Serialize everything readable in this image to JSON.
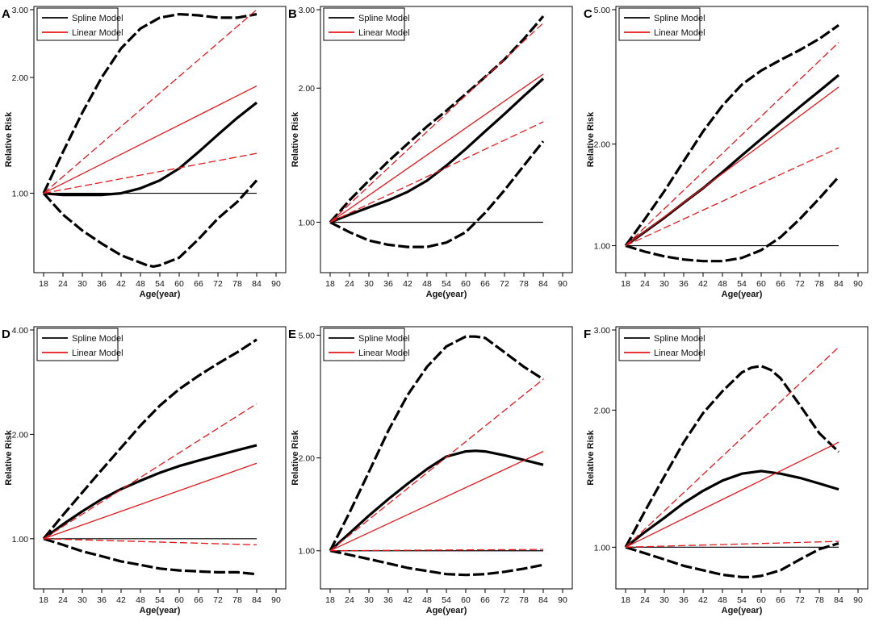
{
  "figure_title": "",
  "colors": {
    "spline": "#000000",
    "linear": "#e4181b",
    "reference": "#000000",
    "axis": "#000000"
  },
  "legend_labels": {
    "spline": "Spline Model",
    "linear": "Linear Model"
  },
  "chart_data": [
    {
      "panel": "A",
      "type": "line",
      "xlabel": "Age(year)",
      "ylabel": "Relative Risk",
      "xlim": [
        18,
        90
      ],
      "x_ticks": [
        18,
        24,
        30,
        36,
        42,
        48,
        54,
        60,
        66,
        72,
        78,
        84,
        90
      ],
      "ylim_log": [
        0.64,
        3.0
      ],
      "y_ticks": [
        1.0,
        2.0,
        3.0
      ],
      "y_tick_labels": [
        "1.00",
        "2.00",
        "3.00"
      ],
      "series": [
        {
          "name": "Spline Model",
          "x": [
            18,
            24,
            30,
            36,
            42,
            48,
            54,
            60,
            66,
            72,
            78,
            84
          ],
          "y": [
            1.0,
            0.99,
            0.99,
            0.99,
            1.0,
            1.03,
            1.08,
            1.16,
            1.28,
            1.42,
            1.57,
            1.72
          ]
        },
        {
          "name": "Spline Model upper CI",
          "x": [
            18,
            24,
            30,
            36,
            42,
            48,
            54,
            60,
            66,
            72,
            78,
            84
          ],
          "y": [
            1.0,
            1.28,
            1.62,
            2.0,
            2.38,
            2.68,
            2.86,
            2.92,
            2.9,
            2.86,
            2.86,
            2.92
          ]
        },
        {
          "name": "Spline Model lower CI",
          "x": [
            18,
            24,
            30,
            36,
            42,
            48,
            50,
            52,
            54,
            60,
            66,
            72,
            78,
            84
          ],
          "y": [
            1.0,
            0.88,
            0.8,
            0.74,
            0.69,
            0.66,
            0.65,
            0.645,
            0.65,
            0.68,
            0.76,
            0.86,
            0.95,
            1.08
          ]
        },
        {
          "name": "Linear Model",
          "x": [
            18,
            84
          ],
          "y": [
            1.0,
            1.9
          ]
        },
        {
          "name": "Linear Model upper CI",
          "x": [
            18,
            84
          ],
          "y": [
            1.0,
            3.0
          ]
        },
        {
          "name": "Linear Model lower CI",
          "x": [
            18,
            84
          ],
          "y": [
            1.0,
            1.27
          ]
        }
      ]
    },
    {
      "panel": "B",
      "type": "line",
      "xlabel": "Age(year)",
      "ylabel": "Relative Risk",
      "xlim": [
        18,
        90
      ],
      "x_ticks": [
        18,
        24,
        30,
        36,
        42,
        48,
        54,
        60,
        66,
        72,
        78,
        84,
        90
      ],
      "ylim_log": [
        0.79,
        3.0
      ],
      "y_ticks": [
        1.0,
        2.0,
        3.0
      ],
      "y_tick_labels": [
        "1.00",
        "2.00",
        "3.00"
      ],
      "series": [
        {
          "name": "Spline Model",
          "x": [
            18,
            24,
            30,
            36,
            42,
            48,
            54,
            60,
            66,
            72,
            78,
            84
          ],
          "y": [
            1.0,
            1.04,
            1.08,
            1.12,
            1.17,
            1.24,
            1.34,
            1.46,
            1.6,
            1.75,
            1.92,
            2.1
          ]
        },
        {
          "name": "Spline Model upper CI",
          "x": [
            18,
            24,
            30,
            36,
            42,
            48,
            54,
            60,
            66,
            72,
            78,
            84
          ],
          "y": [
            1.0,
            1.12,
            1.24,
            1.37,
            1.5,
            1.64,
            1.78,
            1.94,
            2.12,
            2.32,
            2.58,
            2.9
          ]
        },
        {
          "name": "Spline Model lower CI",
          "x": [
            18,
            24,
            30,
            36,
            42,
            48,
            54,
            60,
            66,
            72,
            78,
            84
          ],
          "y": [
            1.0,
            0.95,
            0.91,
            0.89,
            0.88,
            0.88,
            0.9,
            0.95,
            1.05,
            1.18,
            1.34,
            1.52
          ]
        },
        {
          "name": "Linear Model",
          "x": [
            18,
            84
          ],
          "y": [
            1.0,
            2.15
          ]
        },
        {
          "name": "Linear Model upper CI",
          "x": [
            18,
            84
          ],
          "y": [
            1.0,
            2.8
          ]
        },
        {
          "name": "Linear Model lower CI",
          "x": [
            18,
            84
          ],
          "y": [
            1.0,
            1.68
          ]
        }
      ]
    },
    {
      "panel": "C",
      "type": "line",
      "xlabel": "Age(year)",
      "ylabel": "Relative Risk",
      "xlim": [
        18,
        90
      ],
      "x_ticks": [
        18,
        24,
        30,
        36,
        42,
        48,
        54,
        60,
        66,
        72,
        78,
        84,
        90
      ],
      "ylim_log": [
        0.86,
        5.0
      ],
      "y_ticks": [
        1.0,
        2.0,
        5.0
      ],
      "y_tick_labels": [
        "1.00",
        "2.00",
        "5.00"
      ],
      "series": [
        {
          "name": "Spline Model",
          "x": [
            18,
            24,
            30,
            36,
            42,
            48,
            54,
            60,
            66,
            72,
            78,
            84
          ],
          "y": [
            1.0,
            1.1,
            1.21,
            1.34,
            1.48,
            1.65,
            1.85,
            2.07,
            2.31,
            2.58,
            2.87,
            3.2
          ]
        },
        {
          "name": "Spline Model upper CI",
          "x": [
            18,
            24,
            30,
            36,
            42,
            48,
            54,
            60,
            66,
            72,
            78,
            84
          ],
          "y": [
            1.0,
            1.2,
            1.45,
            1.78,
            2.18,
            2.6,
            3.0,
            3.3,
            3.55,
            3.8,
            4.1,
            4.5
          ]
        },
        {
          "name": "Spline Model lower CI",
          "x": [
            18,
            24,
            30,
            36,
            42,
            48,
            54,
            60,
            66,
            72,
            78,
            84
          ],
          "y": [
            1.0,
            0.96,
            0.93,
            0.91,
            0.9,
            0.9,
            0.92,
            0.97,
            1.06,
            1.2,
            1.38,
            1.6
          ]
        },
        {
          "name": "Linear Model",
          "x": [
            18,
            84
          ],
          "y": [
            1.0,
            2.95
          ]
        },
        {
          "name": "Linear Model upper CI",
          "x": [
            18,
            84
          ],
          "y": [
            1.0,
            4.0
          ]
        },
        {
          "name": "Linear Model lower CI",
          "x": [
            18,
            84
          ],
          "y": [
            1.0,
            1.95
          ]
        }
      ]
    },
    {
      "panel": "D",
      "type": "line",
      "xlabel": "Age(year)",
      "ylabel": "Relative Risk",
      "xlim": [
        18,
        90
      ],
      "x_ticks": [
        18,
        24,
        30,
        36,
        42,
        48,
        54,
        60,
        66,
        72,
        78,
        84,
        90
      ],
      "ylim_log": [
        0.74,
        4.0
      ],
      "y_ticks": [
        1.0,
        2.0,
        4.0
      ],
      "y_tick_labels": [
        "1.00",
        "2.00",
        "4.00"
      ],
      "series": [
        {
          "name": "Spline Model",
          "x": [
            18,
            24,
            30,
            36,
            42,
            48,
            54,
            60,
            66,
            72,
            78,
            84
          ],
          "y": [
            1.0,
            1.1,
            1.2,
            1.3,
            1.39,
            1.47,
            1.55,
            1.62,
            1.68,
            1.74,
            1.8,
            1.86
          ]
        },
        {
          "name": "Spline Model upper CI",
          "x": [
            18,
            24,
            30,
            36,
            42,
            48,
            54,
            60,
            66,
            72,
            78,
            84
          ],
          "y": [
            1.0,
            1.17,
            1.36,
            1.58,
            1.83,
            2.12,
            2.42,
            2.7,
            2.95,
            3.2,
            3.45,
            3.75
          ]
        },
        {
          "name": "Spline Model lower CI",
          "x": [
            18,
            24,
            30,
            36,
            42,
            48,
            54,
            60,
            66,
            72,
            78,
            84
          ],
          "y": [
            1.0,
            0.96,
            0.92,
            0.89,
            0.86,
            0.84,
            0.82,
            0.81,
            0.805,
            0.8,
            0.8,
            0.79
          ]
        },
        {
          "name": "Linear Model",
          "x": [
            18,
            84
          ],
          "y": [
            1.0,
            1.65
          ]
        },
        {
          "name": "Linear Model upper CI",
          "x": [
            18,
            84
          ],
          "y": [
            1.0,
            2.45
          ]
        },
        {
          "name": "Linear Model lower CI",
          "x": [
            18,
            84
          ],
          "y": [
            1.0,
            0.96
          ]
        }
      ]
    },
    {
      "panel": "E",
      "type": "line",
      "xlabel": "Age(year)",
      "ylabel": "Relative Risk",
      "xlim": [
        18,
        90
      ],
      "x_ticks": [
        18,
        24,
        30,
        36,
        42,
        48,
        54,
        60,
        66,
        72,
        78,
        84,
        90
      ],
      "ylim_log": [
        0.78,
        5.2
      ],
      "y_ticks": [
        1.0,
        2.0,
        5.0
      ],
      "y_tick_labels": [
        "1.00",
        "2.00",
        "5.00"
      ],
      "series": [
        {
          "name": "Spline Model",
          "x": [
            18,
            24,
            30,
            36,
            42,
            48,
            54,
            60,
            63,
            66,
            72,
            78,
            84
          ],
          "y": [
            1.0,
            1.14,
            1.3,
            1.47,
            1.65,
            1.84,
            2.02,
            2.1,
            2.11,
            2.1,
            2.04,
            1.97,
            1.9
          ]
        },
        {
          "name": "Spline Model upper CI",
          "x": [
            18,
            24,
            30,
            36,
            42,
            48,
            54,
            60,
            63,
            66,
            72,
            78,
            84
          ],
          "y": [
            1.0,
            1.33,
            1.8,
            2.45,
            3.2,
            3.95,
            4.6,
            4.95,
            4.95,
            4.9,
            4.4,
            3.95,
            3.6
          ]
        },
        {
          "name": "Spline Model lower CI",
          "x": [
            18,
            24,
            30,
            36,
            42,
            48,
            54,
            60,
            66,
            72,
            78,
            84
          ],
          "y": [
            1.0,
            0.97,
            0.94,
            0.91,
            0.88,
            0.86,
            0.84,
            0.835,
            0.84,
            0.855,
            0.875,
            0.9
          ]
        },
        {
          "name": "Linear Model",
          "x": [
            18,
            84
          ],
          "y": [
            1.0,
            2.1
          ]
        },
        {
          "name": "Linear Model upper CI",
          "x": [
            18,
            84
          ],
          "y": [
            1.0,
            3.6
          ]
        },
        {
          "name": "Linear Model lower CI",
          "x": [
            18,
            84
          ],
          "y": [
            1.0,
            1.01
          ]
        }
      ]
    },
    {
      "panel": "F",
      "type": "line",
      "xlabel": "Age(year)",
      "ylabel": "Relative Risk",
      "xlim": [
        18,
        90
      ],
      "x_ticks": [
        18,
        24,
        30,
        36,
        42,
        48,
        54,
        60,
        66,
        72,
        78,
        84,
        90
      ],
      "ylim_log": [
        0.83,
        3.0
      ],
      "y_ticks": [
        1.0,
        2.0,
        3.0
      ],
      "y_tick_labels": [
        "1.00",
        "2.00",
        "3.00"
      ],
      "series": [
        {
          "name": "Spline Model",
          "x": [
            18,
            24,
            30,
            36,
            42,
            48,
            54,
            60,
            66,
            72,
            78,
            84
          ],
          "y": [
            1.0,
            1.08,
            1.16,
            1.25,
            1.33,
            1.4,
            1.45,
            1.47,
            1.45,
            1.42,
            1.38,
            1.34
          ]
        },
        {
          "name": "Spline Model upper CI",
          "x": [
            18,
            24,
            30,
            36,
            42,
            48,
            54,
            57,
            60,
            63,
            66,
            72,
            78,
            84
          ],
          "y": [
            1.0,
            1.2,
            1.43,
            1.7,
            1.97,
            2.2,
            2.42,
            2.48,
            2.5,
            2.45,
            2.35,
            2.05,
            1.78,
            1.62
          ]
        },
        {
          "name": "Spline Model lower CI",
          "x": [
            18,
            24,
            30,
            36,
            42,
            48,
            54,
            57,
            60,
            66,
            72,
            78,
            84
          ],
          "y": [
            1.0,
            0.97,
            0.94,
            0.91,
            0.89,
            0.87,
            0.86,
            0.86,
            0.865,
            0.89,
            0.94,
            0.99,
            1.02
          ]
        },
        {
          "name": "Linear Model",
          "x": [
            18,
            84
          ],
          "y": [
            1.0,
            1.7
          ]
        },
        {
          "name": "Linear Model upper CI",
          "x": [
            18,
            84
          ],
          "y": [
            1.0,
            2.75
          ]
        },
        {
          "name": "Linear Model lower CI",
          "x": [
            18,
            84
          ],
          "y": [
            1.0,
            1.03
          ]
        }
      ]
    }
  ]
}
